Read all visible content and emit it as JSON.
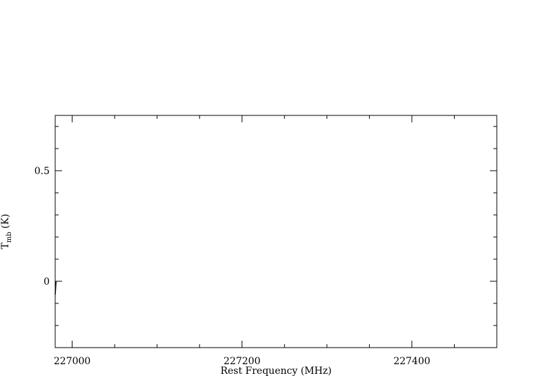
{
  "chart_data": {
    "type": "line",
    "title": "",
    "xlabel": "Rest Frequency (MHz)",
    "ylabel_main": "T",
    "ylabel_sub": "mb",
    "ylabel_unit": " (K)",
    "xlim": [
      226980,
      227500
    ],
    "ylim": [
      -0.3,
      0.75
    ],
    "x_major_ticks": [
      227000,
      227200,
      227400
    ],
    "x_major_labels": [
      "227000",
      "227200",
      "227400"
    ],
    "x_minor_ticks": [
      227050,
      227100,
      227150,
      227250,
      227300,
      227350,
      227450,
      227500
    ],
    "y_major_ticks": [
      0,
      0.5
    ],
    "y_major_labels": [
      "0",
      "0.5"
    ],
    "y_minor_ticks": [
      -0.2,
      -0.1,
      0.1,
      0.2,
      0.3,
      0.4,
      0.6,
      0.7
    ],
    "grid": false,
    "series": [
      {
        "x": [
          226980,
          226980.5,
          226981
        ],
        "y": [
          -0.06,
          -0.03,
          0.0
        ]
      }
    ],
    "colors": {
      "axes": "#000000",
      "line": "#000000",
      "background": "#ffffff"
    }
  }
}
